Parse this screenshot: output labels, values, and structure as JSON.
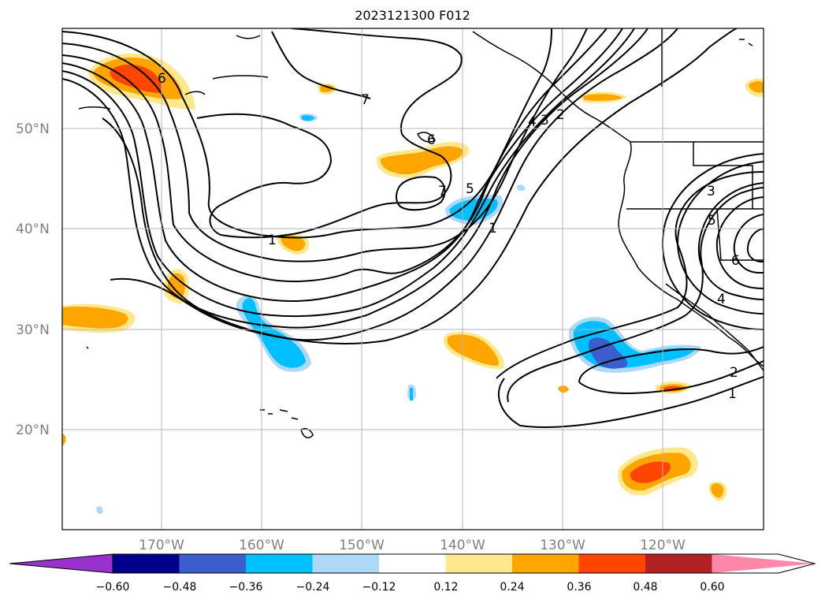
{
  "title": "2023121300 F012",
  "map": {
    "lat_labels": [
      "50°N",
      "40°N",
      "30°N",
      "20°N"
    ],
    "lon_labels": [
      "170°W",
      "160°W",
      "150°W",
      "140°W",
      "130°W",
      "120°W"
    ],
    "contour_labels": [
      "6",
      "7",
      "6",
      "7",
      "5",
      "1",
      "4",
      "3",
      "2",
      "1",
      "3",
      "5",
      "6",
      "4",
      "2",
      "1"
    ]
  },
  "colorbar": {
    "ticks": [
      "−0.60",
      "−0.48",
      "−0.36",
      "−0.24",
      "−0.12",
      "0.12",
      "0.24",
      "0.36",
      "0.48",
      "0.60"
    ],
    "colors": [
      "#9932cc",
      "#00008b",
      "#3a5fcd",
      "#00bfff",
      "#add8f8",
      "#ffffff",
      "#ffe88c",
      "#ffa500",
      "#ff4500",
      "#b22222",
      "#ff88aa"
    ]
  },
  "shading_colors": {
    "pos1": "#ffe88c",
    "pos2": "#ffa500",
    "pos3": "#ff4500",
    "neg1": "#add8f8",
    "neg2": "#00bfff",
    "neg3": "#3a5fcd"
  }
}
